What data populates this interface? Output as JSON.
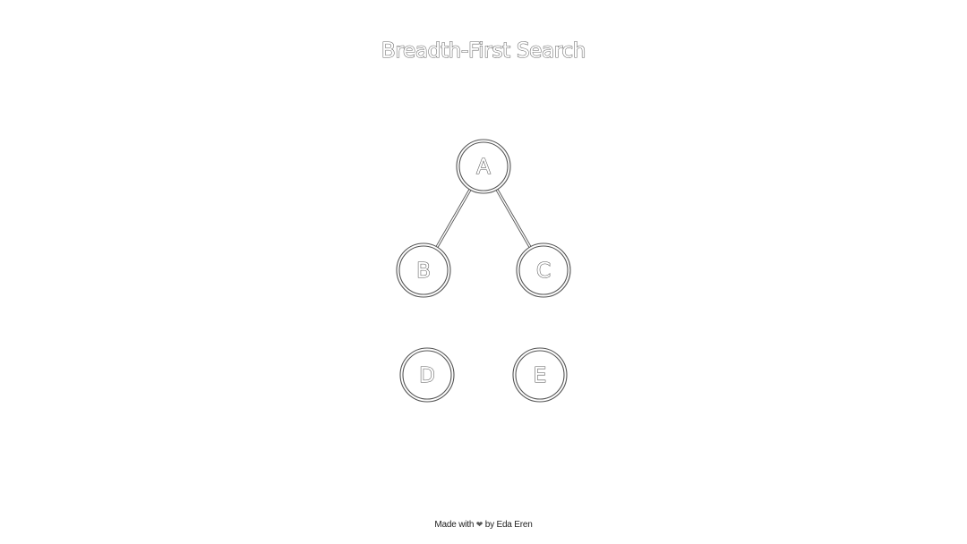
{
  "title": "Breadth-First Search",
  "footer": {
    "prefix": "Made with",
    "heart": "❤",
    "suffix": "by Eda Eren"
  },
  "graph": {
    "nodes": [
      {
        "id": "A",
        "label": "A"
      },
      {
        "id": "B",
        "label": "B"
      },
      {
        "id": "C",
        "label": "C"
      },
      {
        "id": "D",
        "label": "D"
      },
      {
        "id": "E",
        "label": "E"
      }
    ],
    "edges": [
      {
        "from": "A",
        "to": "B"
      },
      {
        "from": "A",
        "to": "C"
      }
    ],
    "colors": {
      "stroke": "#555555",
      "background": "#ffffff"
    }
  }
}
